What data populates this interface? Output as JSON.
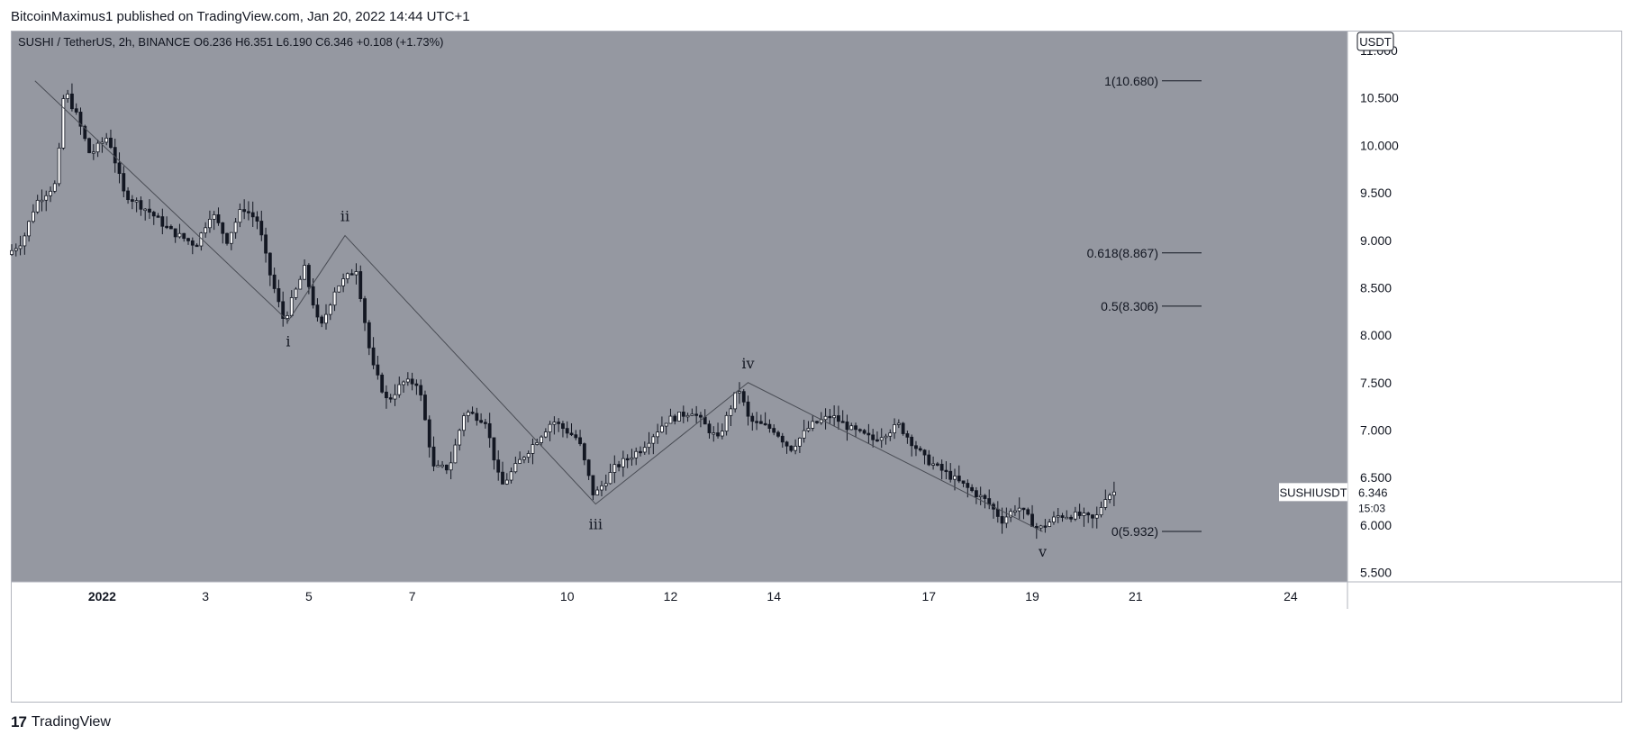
{
  "header": {
    "published_line": "BitcoinMaximus1 published on TradingView.com, Jan 20, 2022 14:44 UTC+1"
  },
  "footer": {
    "brand": "TradingView",
    "logo_icon": "tradingview-logo-icon"
  },
  "legend": {
    "symbol": "SUSHI / TetherUS, 2h, BINANCE",
    "o_label": "O",
    "o_value": "6.236",
    "h_label": "H",
    "h_value": "6.351",
    "l_label": "L",
    "l_value": "6.190",
    "c_label": "C",
    "c_value": "6.346",
    "change": "+0.108 (+1.73%)"
  },
  "currency_badge": "USDT",
  "price_tag": {
    "symbol": "SUSHIUSDT",
    "price": "6.346",
    "countdown": "15:03"
  },
  "colors": {
    "plot_bg": "#9598a1",
    "up_candle": "#ffffff",
    "down_candle": "#131722",
    "wick": "#131722",
    "wave_line": "#4a4d55",
    "text": "#131722"
  },
  "chart_data": {
    "type": "candlestick",
    "y_axis": {
      "ticks": [
        "11.000",
        "10.500",
        "10.000",
        "9.500",
        "9.000",
        "8.500",
        "8.000",
        "7.500",
        "7.000",
        "6.500",
        "6.000",
        "5.500"
      ],
      "ylim": [
        5.4,
        11.2
      ]
    },
    "x_axis": {
      "ticks": [
        {
          "label": "2022",
          "day": 1
        },
        {
          "label": "3",
          "day": 3
        },
        {
          "label": "5",
          "day": 5
        },
        {
          "label": "7",
          "day": 7
        },
        {
          "label": "10",
          "day": 10
        },
        {
          "label": "12",
          "day": 12
        },
        {
          "label": "14",
          "day": 14
        },
        {
          "label": "17",
          "day": 17
        },
        {
          "label": "19",
          "day": 19
        },
        {
          "label": "21",
          "day": 21
        },
        {
          "label": "24",
          "day": 24
        }
      ],
      "xlim": [
        -0.75,
        25.1
      ]
    },
    "price_path": [
      [
        -0.75,
        8.85
      ],
      [
        -0.45,
        9.0
      ],
      [
        -0.2,
        9.4
      ],
      [
        0.2,
        9.6
      ],
      [
        0.35,
        10.6
      ],
      [
        0.6,
        10.3
      ],
      [
        0.85,
        9.9
      ],
      [
        1.2,
        10.1
      ],
      [
        1.5,
        9.5
      ],
      [
        2.0,
        9.3
      ],
      [
        2.4,
        9.1
      ],
      [
        2.9,
        8.95
      ],
      [
        3.2,
        9.3
      ],
      [
        3.5,
        9.0
      ],
      [
        3.8,
        9.35
      ],
      [
        4.1,
        9.2
      ],
      [
        4.3,
        8.7
      ],
      [
        4.6,
        8.15
      ],
      [
        5.0,
        8.7
      ],
      [
        5.3,
        8.05
      ],
      [
        5.6,
        8.5
      ],
      [
        6.0,
        8.7
      ],
      [
        6.3,
        7.7
      ],
      [
        6.6,
        7.3
      ],
      [
        6.9,
        7.5
      ],
      [
        7.2,
        7.5
      ],
      [
        7.5,
        6.6
      ],
      [
        7.8,
        6.6
      ],
      [
        8.1,
        7.2
      ],
      [
        8.5,
        7.1
      ],
      [
        8.8,
        6.4
      ],
      [
        9.2,
        6.7
      ],
      [
        9.5,
        6.9
      ],
      [
        9.8,
        7.1
      ],
      [
        10.3,
        6.9
      ],
      [
        10.6,
        6.3
      ],
      [
        11.0,
        6.6
      ],
      [
        11.5,
        6.8
      ],
      [
        12.0,
        7.1
      ],
      [
        12.5,
        7.2
      ],
      [
        13.0,
        6.9
      ],
      [
        13.4,
        7.45
      ],
      [
        13.6,
        7.1
      ],
      [
        14.1,
        7.0
      ],
      [
        14.4,
        6.8
      ],
      [
        14.8,
        7.05
      ],
      [
        15.2,
        7.15
      ],
      [
        15.6,
        7.0
      ],
      [
        16.0,
        6.9
      ],
      [
        16.5,
        7.05
      ],
      [
        17.0,
        6.7
      ],
      [
        17.4,
        6.55
      ],
      [
        17.8,
        6.4
      ],
      [
        18.2,
        6.25
      ],
      [
        18.5,
        6.05
      ],
      [
        18.8,
        6.2
      ],
      [
        19.2,
        5.95
      ],
      [
        19.6,
        6.1
      ],
      [
        20.0,
        6.1
      ],
      [
        20.3,
        6.05
      ],
      [
        20.5,
        6.3
      ],
      [
        20.65,
        6.346
      ]
    ],
    "price_path_note": "Candle prices approximate; 2h candles read from chart",
    "wave_points": [
      {
        "day": -0.3,
        "price": 10.68,
        "label": ""
      },
      {
        "day": 4.6,
        "price": 8.15,
        "label": "i"
      },
      {
        "day": 5.7,
        "price": 9.05,
        "label": "ii"
      },
      {
        "day": 10.55,
        "price": 6.22,
        "label": "iii"
      },
      {
        "day": 13.5,
        "price": 7.5,
        "label": "iv"
      },
      {
        "day": 19.2,
        "price": 5.93,
        "label": "v"
      }
    ],
    "fib_levels": [
      {
        "label": "1(10.680)",
        "price": 10.68
      },
      {
        "label": "0.618(8.867)",
        "price": 8.867
      },
      {
        "label": "0.5(8.306)",
        "price": 8.306
      },
      {
        "label": "0(5.932)",
        "price": 5.932
      }
    ],
    "last_price": 6.346
  }
}
